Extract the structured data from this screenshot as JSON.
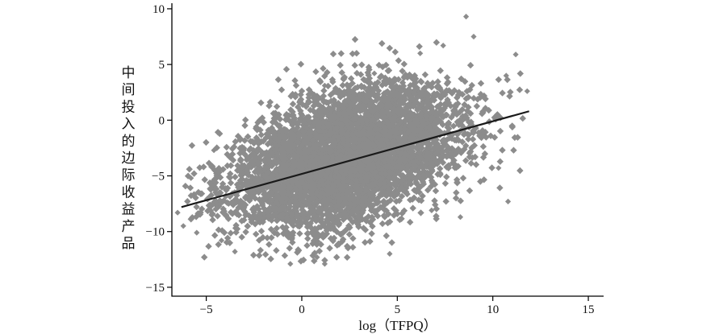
{
  "chart_data": {
    "type": "scatter",
    "xlabel": "log（TFPQ）",
    "ylabel": "中间投入的边际收益产品",
    "xlim": [
      -6.8,
      15.8
    ],
    "ylim": [
      -15.8,
      10.5
    ],
    "x_ticks": [
      -5,
      0,
      5,
      10,
      15
    ],
    "x_tick_labels": [
      "−5",
      "0",
      "5",
      "10",
      "15"
    ],
    "y_ticks": [
      -15,
      -10,
      -5,
      0,
      5,
      10
    ],
    "y_tick_labels": [
      "−15",
      "−10",
      "−5",
      "0",
      "5",
      "10"
    ],
    "grid": false,
    "colors": {
      "points": "#8c8c8c",
      "fit_line": "#1a1a1a",
      "axis": "#000000"
    },
    "series": [
      {
        "kind": "scatter",
        "description_points": [
          {
            "x": -6.5,
            "y": -8.3
          },
          {
            "x": -6.2,
            "y": -9.5
          },
          {
            "x": -5.8,
            "y": -5.2
          },
          {
            "x": -5.5,
            "y": -10.1
          },
          {
            "x": -4.6,
            "y": -2.7
          },
          {
            "x": -4.2,
            "y": -10.8
          },
          {
            "x": -3.5,
            "y": -11.8
          },
          {
            "x": -2.4,
            "y": -0.6
          },
          {
            "x": -1.2,
            "y": 0.2
          },
          {
            "x": -0.6,
            "y": -12.9
          },
          {
            "x": 0.0,
            "y": -12.6
          },
          {
            "x": 0.8,
            "y": -12.3
          },
          {
            "x": 1.2,
            "y": -12.9
          },
          {
            "x": 1.2,
            "y": 3.1
          },
          {
            "x": 2.4,
            "y": 2.7
          },
          {
            "x": 3.8,
            "y": 4.2
          },
          {
            "x": 4.6,
            "y": -12.0
          },
          {
            "x": 6.2,
            "y": 6.0
          },
          {
            "x": 7.4,
            "y": 6.7
          },
          {
            "x": 8.6,
            "y": 9.3
          },
          {
            "x": 9.0,
            "y": 7.5
          },
          {
            "x": 10.7,
            "y": 4.0
          },
          {
            "x": 11.2,
            "y": 5.9
          },
          {
            "x": 11.8,
            "y": 2.6
          },
          {
            "x": 10.8,
            "y": -7.3
          },
          {
            "x": 10.3,
            "y": -4.3
          },
          {
            "x": 8.3,
            "y": -8.7
          },
          {
            "x": 6.8,
            "y": -8.1
          }
        ]
      },
      {
        "kind": "line",
        "x": [
          -6.3,
          11.9
        ],
        "y": [
          -7.8,
          0.8
        ]
      }
    ]
  }
}
